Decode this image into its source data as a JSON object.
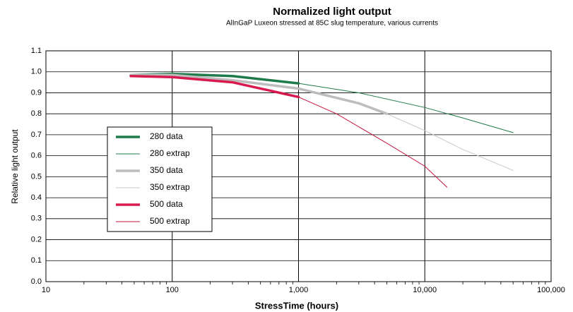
{
  "chart_data": {
    "type": "line",
    "title": "Normalized light output",
    "subtitle": "AlInGaP Luxeon stressed at 85C slug temperature, various currents",
    "x_label": "StressTime (hours)",
    "y_label": "Relative light output",
    "xscale": "log",
    "xlim": [
      10,
      100000
    ],
    "xticks": [
      10,
      100,
      {
        "value": 1000,
        "label": "1,000"
      },
      {
        "value": 10000,
        "label": "10,000"
      },
      {
        "value": 100000,
        "label": "100,000"
      }
    ],
    "ylim": [
      0,
      1.1
    ],
    "yticks": [
      {
        "value": 0,
        "label": "0.0"
      },
      0.1,
      0.2,
      0.3,
      0.4,
      0.5,
      0.6,
      0.7,
      0.8,
      0.9,
      {
        "value": 1,
        "label": "1.0"
      },
      1.1
    ],
    "grid": true,
    "minor_ticks": true,
    "legend": "center-left",
    "series": [
      {
        "name": "280 data",
        "color": "#1f7a4a",
        "line_width": 3.5,
        "x": [
          47,
          100,
          300,
          1000
        ],
        "values": [
          0.985,
          0.99,
          0.98,
          0.945
        ]
      },
      {
        "name": "280 extrap",
        "color": "#1f7a4a",
        "line_width": 1,
        "x": [
          1000,
          3000,
          10000,
          20000,
          50000
        ],
        "values": [
          0.945,
          0.9,
          0.83,
          0.78,
          0.71
        ]
      },
      {
        "name": "350 data",
        "color": "#bdbdbd",
        "line_width": 3.5,
        "x": [
          47,
          100,
          300,
          1000,
          3000,
          5000
        ],
        "values": [
          0.985,
          0.985,
          0.96,
          0.92,
          0.85,
          0.8
        ]
      },
      {
        "name": "350 extrap",
        "color": "#c8c8c8",
        "line_width": 1,
        "x": [
          5000,
          10000,
          20000,
          50000
        ],
        "values": [
          0.8,
          0.72,
          0.63,
          0.53
        ]
      },
      {
        "name": "500 data",
        "color": "#d81b4f",
        "line_width": 3.5,
        "x": [
          47,
          100,
          300,
          1000
        ],
        "values": [
          0.98,
          0.975,
          0.95,
          0.88
        ]
      },
      {
        "name": "500 extrap",
        "color": "#c0143c",
        "line_width": 1,
        "x": [
          1000,
          2000,
          5000,
          10000,
          15000
        ],
        "values": [
          0.88,
          0.8,
          0.66,
          0.55,
          0.45
        ]
      }
    ]
  }
}
